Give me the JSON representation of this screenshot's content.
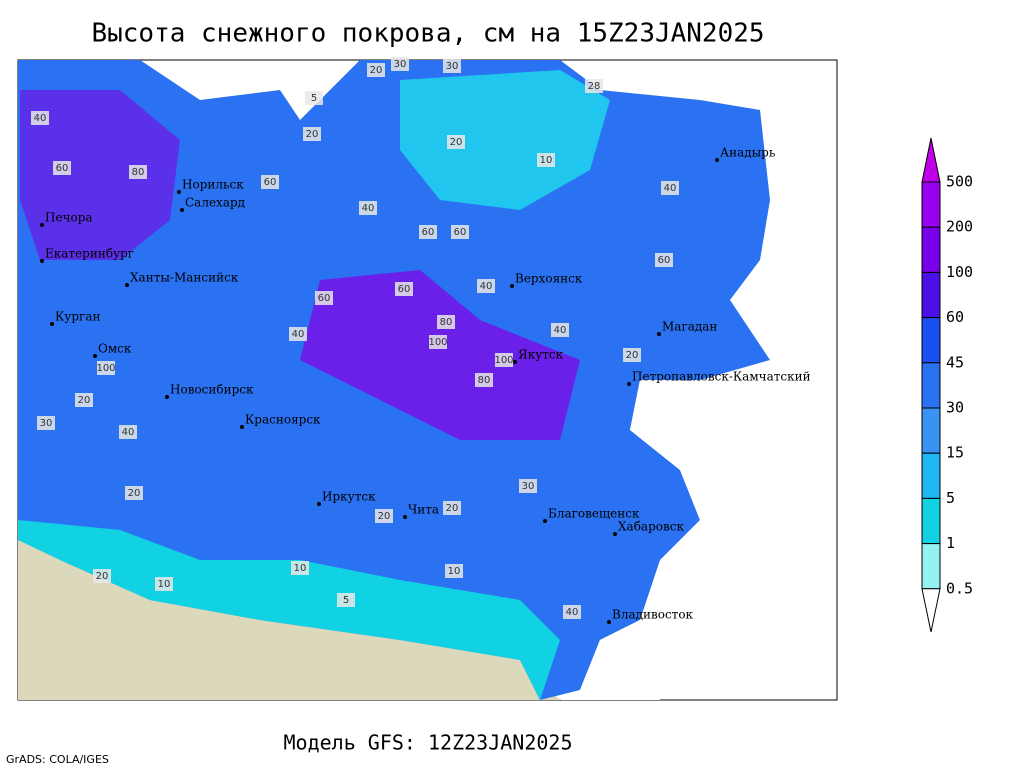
{
  "header": {
    "title": "Высота снежного покрова, см на 15Z23JAN2025"
  },
  "legend": {
    "levels": [
      {
        "label": "500",
        "color": "#9a00f0"
      },
      {
        "label": "200",
        "color": "#7a00ea"
      },
      {
        "label": "100",
        "color": "#4a10e8"
      },
      {
        "label": "60",
        "color": "#1a50f0"
      },
      {
        "label": "45",
        "color": "#2a72f2"
      },
      {
        "label": "30",
        "color": "#3a92f2"
      },
      {
        "label": "15",
        "color": "#20b6f2"
      },
      {
        "label": "5",
        "color": "#10d2e2"
      },
      {
        "label": "1",
        "color": "#96f2f2"
      },
      {
        "label": "0.5",
        "color": "#ffffff"
      }
    ],
    "top_color": "#c000e8"
  },
  "cities": [
    "Норильск",
    "Салехард",
    "Печора",
    "Екатеринбург",
    "Ханты-Мансийск",
    "Курган",
    "Омск",
    "Новосибирск",
    "Красноярск",
    "Иркутск",
    "Чита",
    "Благовещенск",
    "Хабаровск",
    "Владивосток",
    "Верхоянск",
    "Якутск",
    "Магадан",
    "Петропавловск-Камчатский",
    "Анадырь"
  ],
  "contour_labels": [
    "30",
    "30",
    "20",
    "5",
    "20",
    "20",
    "10",
    "28",
    "40",
    "60",
    "80",
    "60",
    "40",
    "60",
    "60",
    "40",
    "60",
    "80",
    "100",
    "100",
    "80",
    "60",
    "40",
    "100",
    "40",
    "20",
    "30",
    "40",
    "20",
    "10",
    "5",
    "20",
    "10",
    "20",
    "30",
    "20",
    "10",
    "40",
    "60",
    "20",
    "40"
  ],
  "footer": {
    "model": "Модель GFS: 12Z23JAN2025",
    "credit": "GrADS: COLA/IGES"
  }
}
